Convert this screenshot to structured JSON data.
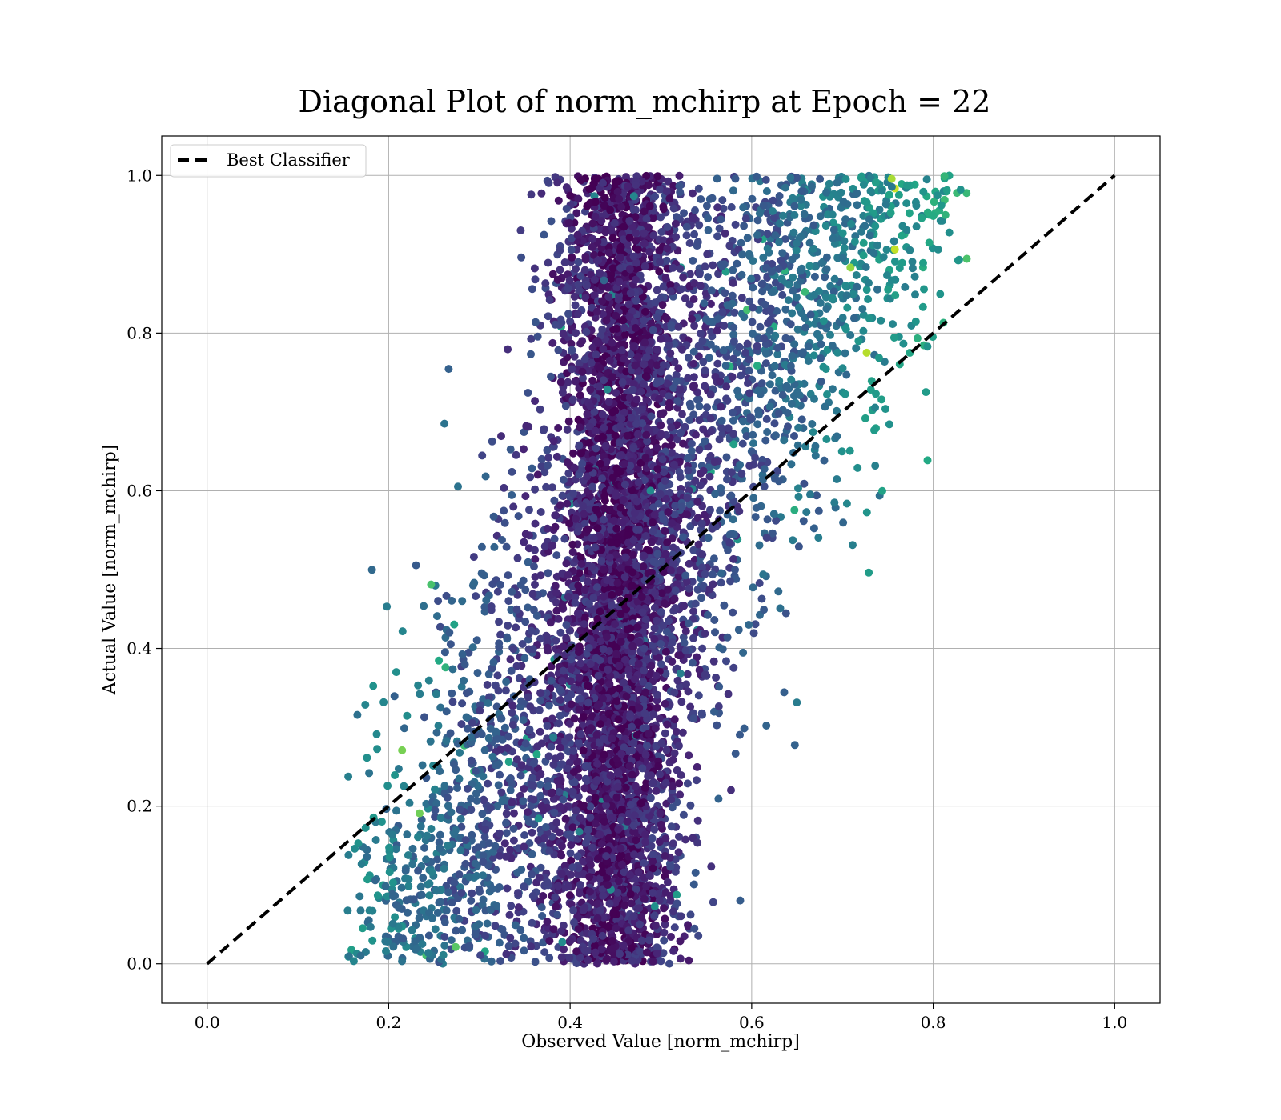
{
  "chart_data": {
    "type": "scatter",
    "title": "Diagonal Plot of norm_mchirp at Epoch = 22",
    "xlabel": "Observed Value [norm_mchirp]",
    "ylabel": "Actual Value [norm_mchirp]",
    "xlim": [
      -0.05,
      1.05
    ],
    "ylim": [
      -0.05,
      1.05
    ],
    "xticks": [
      "0.0",
      "0.2",
      "0.4",
      "0.6",
      "0.8",
      "1.0"
    ],
    "yticks": [
      "0.0",
      "0.2",
      "0.4",
      "0.6",
      "0.8",
      "1.0"
    ],
    "grid": true,
    "colormap": "viridis",
    "legend": {
      "position": "top-left",
      "entries": [
        "Best Classifier"
      ]
    },
    "series": [
      {
        "name": "Best Classifier",
        "style": "dashed",
        "color": "#000000",
        "points": [
          [
            0.0,
            0.0
          ],
          [
            1.0,
            1.0
          ]
        ]
      }
    ],
    "scatter_distribution": {
      "description_values": {
        "x_range": [
          0.16,
          0.84
        ],
        "y_range": [
          0.0,
          1.0
        ],
        "dense_core_x": [
          0.4,
          0.52
        ],
        "point_count_approx": 20000
      },
      "color_by_rule": "color shifts from dark purple near x≈0.45 to teal/green away from it",
      "sample_points": [
        {
          "x": 0.45,
          "y": 0.95
        },
        {
          "x": 0.44,
          "y": 0.82
        },
        {
          "x": 0.46,
          "y": 0.65
        },
        {
          "x": 0.43,
          "y": 0.5
        },
        {
          "x": 0.47,
          "y": 0.35
        },
        {
          "x": 0.45,
          "y": 0.2
        },
        {
          "x": 0.44,
          "y": 0.05
        },
        {
          "x": 0.62,
          "y": 0.9
        },
        {
          "x": 0.7,
          "y": 0.75
        },
        {
          "x": 0.75,
          "y": 0.6
        },
        {
          "x": 0.66,
          "y": 0.45
        },
        {
          "x": 0.3,
          "y": 0.35
        },
        {
          "x": 0.24,
          "y": 0.22
        },
        {
          "x": 0.2,
          "y": 0.12
        },
        {
          "x": 0.36,
          "y": 0.7
        },
        {
          "x": 0.79,
          "y": 0.85
        },
        {
          "x": 0.83,
          "y": 0.93
        },
        {
          "x": 0.16,
          "y": 0.27
        },
        {
          "x": 0.19,
          "y": 0.55
        },
        {
          "x": 0.67,
          "y": 0.08
        },
        {
          "x": 0.34,
          "y": 0.98
        },
        {
          "x": 0.61,
          "y": 0.05
        },
        {
          "x": 0.81,
          "y": 0.63
        },
        {
          "x": 0.55,
          "y": 0.3
        }
      ]
    }
  }
}
